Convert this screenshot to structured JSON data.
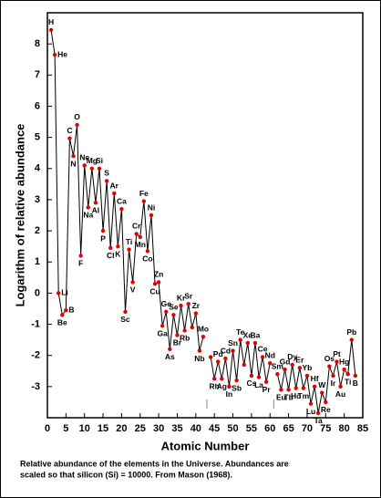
{
  "chart_data": {
    "type": "line",
    "y_label": "Logarithm of relative abundance",
    "x_label": "Atomic Number",
    "caption": [
      "Relative abundance of the elements in the Universe.  Abundances are",
      "scaled so that silicon (Si) = 10000.  From Mason (1968)."
    ],
    "x": [
      1,
      2,
      3,
      4,
      5,
      6,
      7,
      8,
      9,
      10,
      11,
      12,
      13,
      14,
      15,
      16,
      17,
      18,
      19,
      20,
      21,
      22,
      23,
      24,
      25,
      26,
      27,
      28,
      29,
      30,
      31,
      32,
      33,
      34,
      35,
      36,
      37,
      38,
      39,
      40,
      41,
      42,
      43,
      44,
      45,
      46,
      47,
      48,
      49,
      50,
      51,
      52,
      53,
      54,
      55,
      56,
      57,
      58,
      59,
      60,
      61,
      62,
      63,
      64,
      65,
      66,
      67,
      68,
      69,
      70,
      71,
      72,
      73,
      74,
      75,
      76,
      77,
      78,
      79,
      80,
      81,
      82,
      83
    ],
    "values": [
      8.45,
      7.65,
      0,
      -0.7,
      -0.55,
      4.97,
      4.4,
      5.4,
      1.2,
      4.1,
      2.75,
      4.0,
      2.9,
      4.0,
      2.0,
      3.6,
      1.45,
      3.2,
      1.5,
      2.7,
      -0.6,
      1.4,
      0.35,
      1.9,
      1.8,
      2.95,
      1.35,
      2.5,
      0.3,
      0.35,
      -1.05,
      -0.6,
      -1.8,
      -0.7,
      -1.35,
      -0.4,
      -1.2,
      -0.35,
      -1.1,
      -0.65,
      -1.85,
      -1.4,
      null,
      -2.05,
      -2.75,
      -2.2,
      -2.75,
      -2.1,
      -3.0,
      -1.85,
      -2.8,
      -1.5,
      -2.3,
      -1.6,
      -2.65,
      -1.6,
      -2.7,
      -2.05,
      -2.85,
      -2.25,
      null,
      -2.6,
      -3.1,
      -2.45,
      -3.1,
      -2.3,
      -3.05,
      -2.4,
      -3.05,
      -2.65,
      -3.55,
      -3.0,
      -3.85,
      -3.2,
      -3.5,
      -2.35,
      -2.65,
      -2.2,
      -3.0,
      -2.45,
      -2.6,
      -1.5,
      -2.65
    ],
    "labels": [
      "H",
      "He",
      "Li",
      "Be",
      "B",
      "C",
      "N",
      "O",
      "F",
      "Ne",
      "Na",
      "Mg",
      "Al",
      "Si",
      "P",
      "S",
      "Cl",
      "Ar",
      "K",
      "Ca",
      "Sc",
      "Ti",
      "V",
      "Cr",
      "Mn",
      "Fe",
      "Co",
      "Ni",
      "Cu",
      "Zn",
      "Ga",
      "Ge",
      "As",
      "Se",
      "Br",
      "Kr",
      "Rb",
      "Sr",
      null,
      "Zr",
      "Nb",
      "Mo",
      null,
      null,
      "Rh",
      "Pd",
      "Ag",
      "Cd",
      "In",
      "Sn",
      "Sb",
      "Te",
      null,
      "Xe",
      "Cs",
      "Ba",
      "La",
      "Ce",
      "Pr",
      "Nd",
      null,
      "Sm",
      "Eu",
      "Gd",
      "Tb",
      "Dy",
      "Ho",
      "Er",
      "Tm",
      "Yb",
      "Lu",
      "Hf",
      "Ta",
      "W",
      "Re",
      "Os",
      "Ir",
      "Pt",
      "Au",
      "Hg",
      "Ti",
      "Pb",
      "B"
    ],
    "line_color": "#000000",
    "marker_color": "#e00000",
    "xlim": [
      0,
      85
    ],
    "ylim": [
      -4,
      9
    ],
    "xticks": [
      0,
      5,
      10,
      15,
      20,
      25,
      30,
      35,
      40,
      45,
      50,
      55,
      60,
      65,
      70,
      75,
      80,
      85
    ],
    "yticks": [
      -3,
      -2,
      -1,
      0,
      1,
      2,
      3,
      4,
      5,
      6,
      7,
      8
    ]
  }
}
